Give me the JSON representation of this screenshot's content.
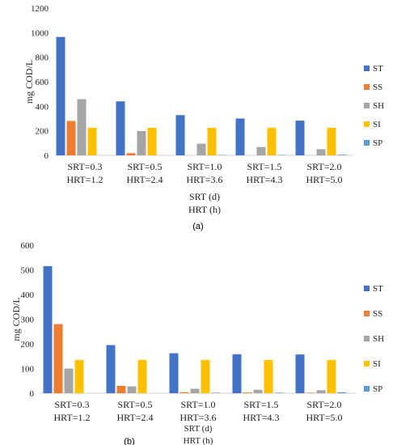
{
  "colors": {
    "ST": "#4472C4",
    "SS": "#ED7D31",
    "SH": "#A5A5A5",
    "SI": "#FFC000",
    "SP": "#5B9BD5"
  },
  "chart_data": [
    {
      "type": "bar",
      "panel": "(a)",
      "ylabel": "mg COD/L",
      "xlabel_lines": [
        "SRT (d)",
        "HRT (h)"
      ],
      "ylim": [
        0,
        1200
      ],
      "yticks": [
        0,
        200,
        400,
        600,
        800,
        1000,
        1200
      ],
      "grid": false,
      "legend_position": "right",
      "categories": [
        [
          "SRT=0.3",
          "HRT=1.2"
        ],
        [
          "SRT=0.5",
          "HRT=2.4"
        ],
        [
          "SRT=1.0",
          "HRT=3.6"
        ],
        [
          "SRT=1.5",
          "HRT=4.3"
        ],
        [
          "SRT=2.0",
          "HRT=5.0"
        ]
      ],
      "series": [
        {
          "name": "ST",
          "values": [
            965,
            440,
            328,
            300,
            283
          ]
        },
        {
          "name": "SS",
          "values": [
            280,
            18,
            0,
            0,
            0
          ]
        },
        {
          "name": "SH",
          "values": [
            458,
            198,
            95,
            68,
            50
          ]
        },
        {
          "name": "SI",
          "values": [
            225,
            225,
            225,
            225,
            225
          ]
        },
        {
          "name": "SP",
          "values": [
            0,
            0,
            3,
            3,
            5
          ]
        }
      ]
    },
    {
      "type": "bar",
      "panel": "(b)",
      "ylabel": "mg COD/L",
      "xlabel_lines": [
        "SRT (d)",
        "HRT (h)"
      ],
      "ylim": [
        0,
        600
      ],
      "yticks": [
        0,
        100,
        200,
        300,
        400,
        500,
        600
      ],
      "grid": false,
      "legend_position": "right",
      "categories": [
        [
          "SRT=0.3",
          "HRT=1.2"
        ],
        [
          "SRT=0.5",
          "HRT=2.4"
        ],
        [
          "SRT=1.0",
          "HRT=3.6"
        ],
        [
          "SRT=1.5",
          "HRT=4.3"
        ],
        [
          "SRT=2.0",
          "HRT=5.0"
        ]
      ],
      "series": [
        {
          "name": "ST",
          "values": [
            515,
            195,
            162,
            158,
            157
          ]
        },
        {
          "name": "SS",
          "values": [
            280,
            30,
            4,
            3,
            2
          ]
        },
        {
          "name": "SH",
          "values": [
            100,
            28,
            18,
            14,
            12
          ]
        },
        {
          "name": "SI",
          "values": [
            135,
            135,
            135,
            135,
            135
          ]
        },
        {
          "name": "SP",
          "values": [
            0,
            0,
            2,
            2,
            4
          ]
        }
      ]
    }
  ]
}
